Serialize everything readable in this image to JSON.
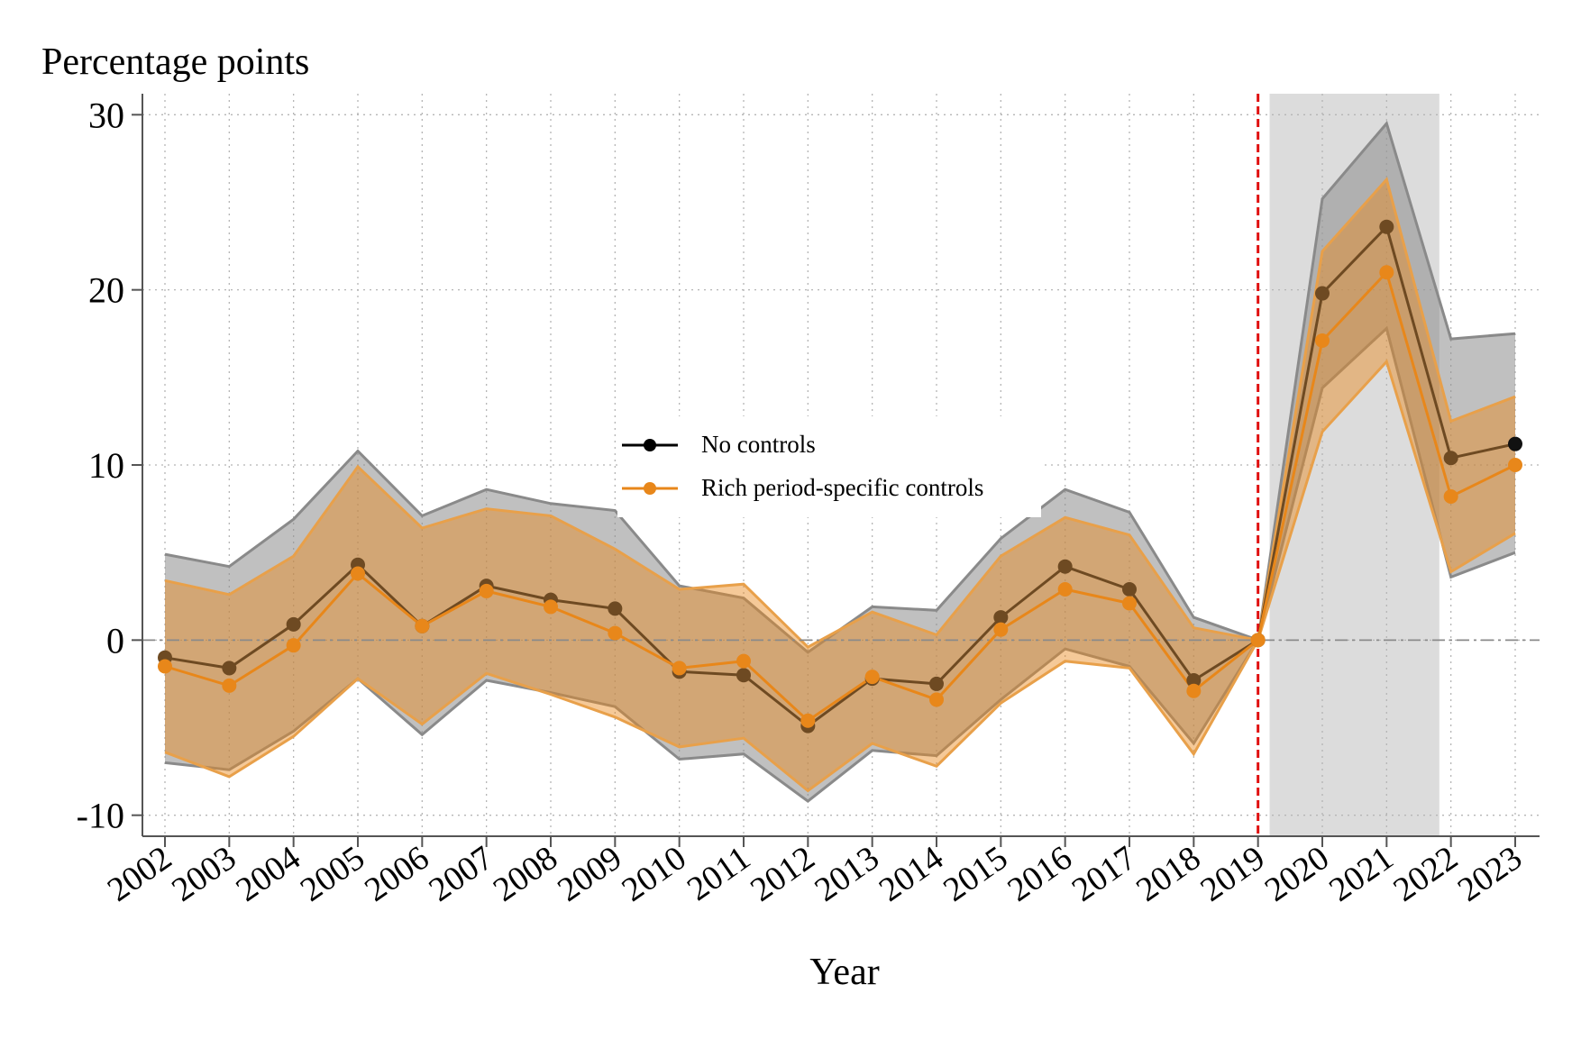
{
  "chart_data": {
    "type": "line",
    "ylabel": "Percentage points",
    "xlabel": "Year",
    "x": [
      "2002",
      "2003",
      "2004",
      "2005",
      "2006",
      "2007",
      "2008",
      "2009",
      "2010",
      "2011",
      "2012",
      "2013",
      "2014",
      "2015",
      "2016",
      "2017",
      "2018",
      "2019",
      "2020",
      "2021",
      "2022",
      "2023"
    ],
    "yticks": [
      -10,
      0,
      10,
      20,
      30
    ],
    "ytick_labels": [
      "-10",
      "0",
      "10",
      "20",
      "30"
    ],
    "ylim": [
      -11.2,
      31.2
    ],
    "grid": true,
    "legend_position": "center",
    "reference_line_year": "2019",
    "shaded_period": [
      "2020",
      "2021"
    ],
    "series": [
      {
        "name": "No controls",
        "color": "#000000",
        "band_color": "#8c8c8c",
        "values": [
          -1.0,
          -1.6,
          0.9,
          4.3,
          0.8,
          3.1,
          2.3,
          1.8,
          -1.8,
          -2.0,
          -4.9,
          -2.2,
          -2.5,
          1.3,
          4.2,
          2.9,
          -2.3,
          0.0,
          19.8,
          23.6,
          10.4,
          11.2
        ],
        "ci_low": [
          -7.0,
          -7.4,
          -5.2,
          -2.2,
          -5.4,
          -2.3,
          -3.0,
          -3.8,
          -6.8,
          -6.5,
          -9.2,
          -6.3,
          -6.6,
          -3.4,
          -0.5,
          -1.5,
          -5.9,
          0.0,
          14.4,
          17.8,
          3.6,
          5.0
        ],
        "ci_high": [
          4.9,
          4.2,
          6.9,
          10.8,
          7.1,
          8.6,
          7.8,
          7.4,
          3.1,
          2.4,
          -0.7,
          1.9,
          1.7,
          5.8,
          8.6,
          7.3,
          1.3,
          0.0,
          25.2,
          29.5,
          17.2,
          17.5
        ]
      },
      {
        "name": "Rich period-specific controls",
        "color": "#e8871a",
        "band_color": "#e8871a",
        "values": [
          -1.5,
          -2.6,
          -0.3,
          3.8,
          0.8,
          2.8,
          1.9,
          0.4,
          -1.6,
          -1.2,
          -4.6,
          -2.1,
          -3.4,
          0.6,
          2.9,
          2.1,
          -2.9,
          0.0,
          17.1,
          21.0,
          8.2,
          10.0
        ],
        "ci_low": [
          -6.4,
          -7.8,
          -5.5,
          -2.2,
          -4.8,
          -1.9,
          -3.1,
          -4.4,
          -6.1,
          -5.6,
          -8.6,
          -5.9,
          -7.2,
          -3.6,
          -1.2,
          -1.6,
          -6.5,
          0.0,
          11.9,
          15.9,
          3.9,
          6.1
        ],
        "ci_high": [
          3.4,
          2.6,
          4.8,
          9.9,
          6.4,
          7.5,
          7.1,
          5.2,
          2.9,
          3.2,
          -0.4,
          1.6,
          0.3,
          4.8,
          7.0,
          6.0,
          0.7,
          0.0,
          22.2,
          26.3,
          12.5,
          13.9
        ]
      }
    ]
  }
}
